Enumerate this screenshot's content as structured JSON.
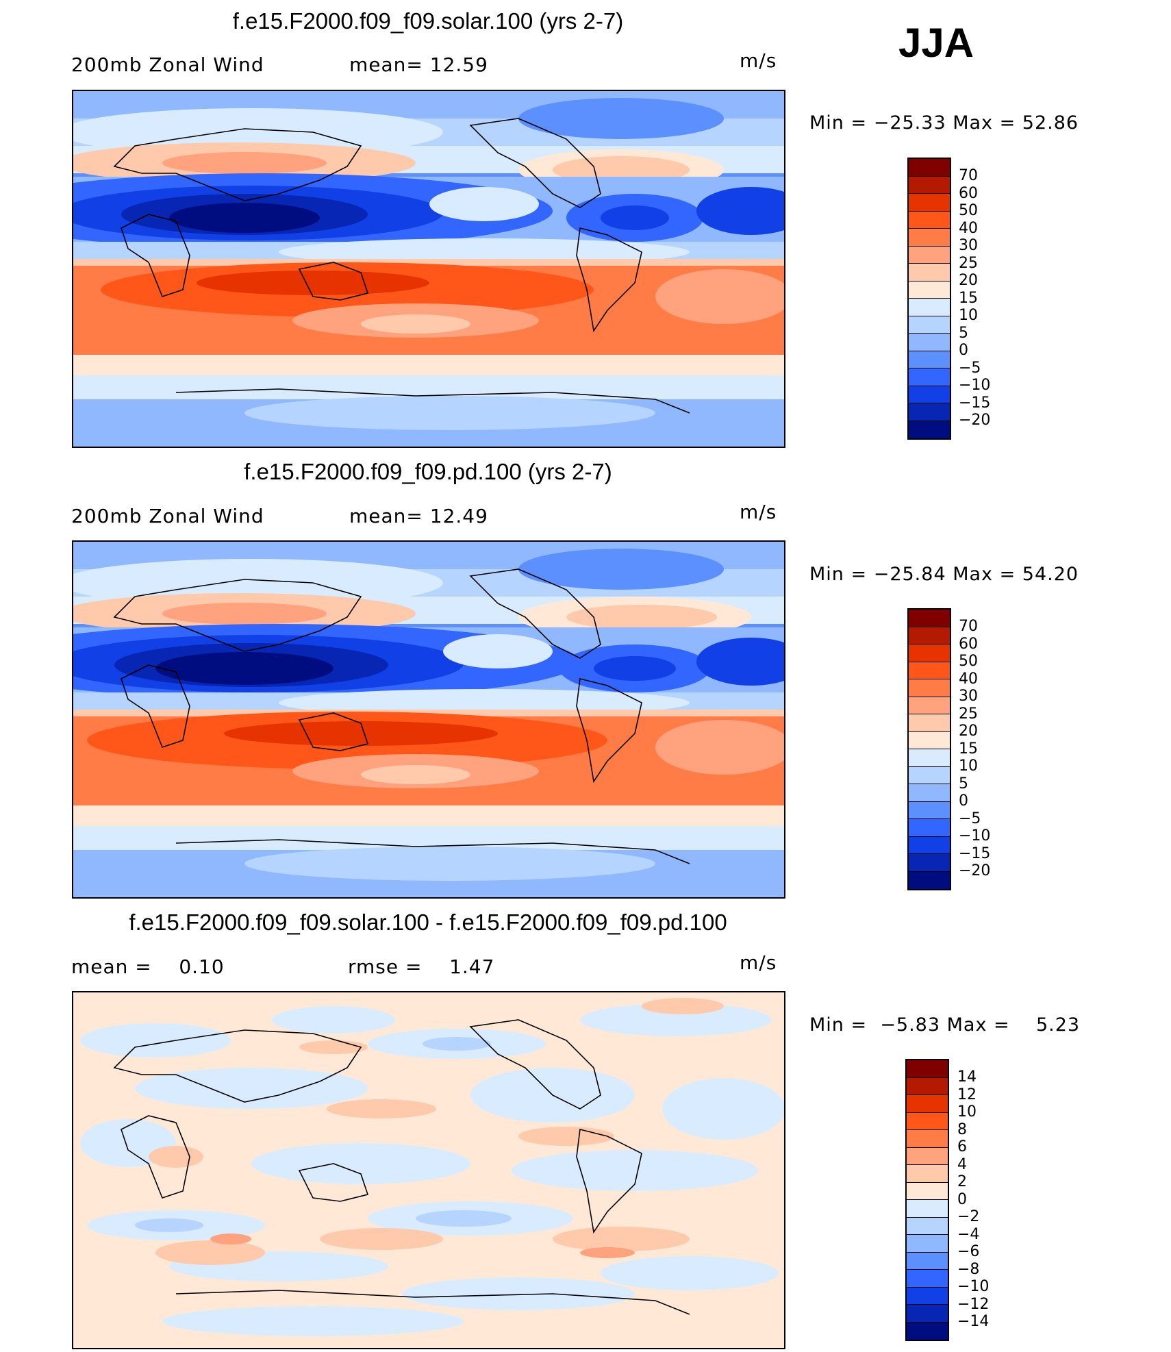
{
  "season": "JJA",
  "units": "m/s",
  "panels": [
    {
      "title": "f.e15.F2000.f09_f09.solar.100 (yrs 2-7)",
      "left_label": "200mb Zonal Wind",
      "mid_label": "mean=   12.59",
      "units": "m/s",
      "minmax": "Min = −25.33 Max =   52.86",
      "colorbar": {
        "colors": [
          "#800000",
          "#b31a00",
          "#e63300",
          "#ff5719",
          "#ff7c47",
          "#ffa27d",
          "#ffc9ab",
          "#ffe9d6",
          "#d9ecff",
          "#b5d4ff",
          "#8fb8ff",
          "#5c8fff",
          "#3366ff",
          "#1040e6",
          "#0626b3",
          "#000d80"
        ],
        "labels": [
          "70",
          "60",
          "50",
          "40",
          "30",
          "25",
          "20",
          "15",
          "10",
          "5",
          "0",
          "−5",
          "−10",
          "−15",
          "−20"
        ]
      }
    },
    {
      "title": "f.e15.F2000.f09_f09.pd.100 (yrs 2-7)",
      "left_label": "200mb Zonal Wind",
      "mid_label": "mean=   12.49",
      "units": "m/s",
      "minmax": "Min = −25.84 Max =   54.20",
      "colorbar": {
        "colors": [
          "#800000",
          "#b31a00",
          "#e63300",
          "#ff5719",
          "#ff7c47",
          "#ffa27d",
          "#ffc9ab",
          "#ffe9d6",
          "#d9ecff",
          "#b5d4ff",
          "#8fb8ff",
          "#5c8fff",
          "#3366ff",
          "#1040e6",
          "#0626b3",
          "#000d80"
        ],
        "labels": [
          "70",
          "60",
          "50",
          "40",
          "30",
          "25",
          "20",
          "15",
          "10",
          "5",
          "0",
          "−5",
          "−10",
          "−15",
          "−20"
        ]
      }
    },
    {
      "title": "f.e15.F2000.f09_f09.solar.100 - f.e15.F2000.f09_f09.pd.100",
      "left_label": "mean =    0.10",
      "mid_label": "rmse =    1.47",
      "units": "m/s",
      "minmax": "Min =  −5.83 Max =    5.23",
      "colorbar": {
        "colors": [
          "#800000",
          "#b31a00",
          "#e63300",
          "#ff5719",
          "#ff7c47",
          "#ffa27d",
          "#ffc9ab",
          "#ffe9d6",
          "#d9ecff",
          "#b5d4ff",
          "#8fb8ff",
          "#5c8fff",
          "#3366ff",
          "#1040e6",
          "#0626b3",
          "#000d80"
        ],
        "labels": [
          "14",
          "12",
          "10",
          "8",
          "6",
          "4",
          "2",
          "0",
          "−2",
          "−4",
          "−6",
          "−8",
          "−10",
          "−12",
          "−14"
        ]
      }
    }
  ]
}
